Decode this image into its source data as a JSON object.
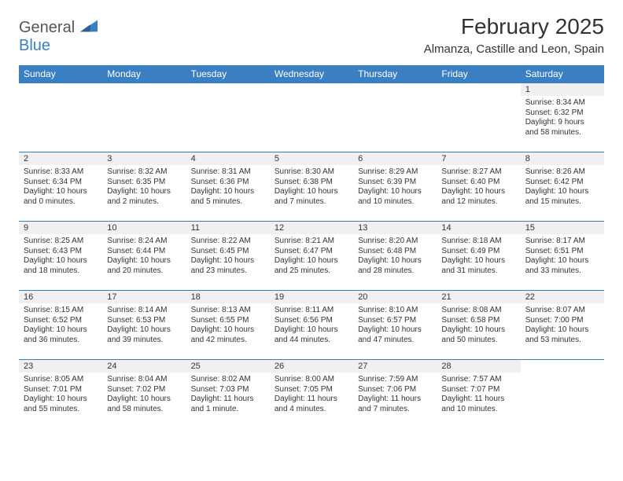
{
  "brand": {
    "part1": "General",
    "part2": "Blue"
  },
  "title": "February 2025",
  "location": "Almanza, Castille and Leon, Spain",
  "header_bg": "#3a7fc2",
  "header_fg": "#ffffff",
  "rule_color": "#3a7fc2",
  "daynum_bg": "#f0f0f0",
  "text_color": "#333333",
  "background": "#ffffff",
  "font_family": "Arial, Helvetica, sans-serif",
  "title_fontsize": 28,
  "location_fontsize": 15,
  "header_fontsize": 12,
  "body_fontsize": 10,
  "day_headers": [
    "Sunday",
    "Monday",
    "Tuesday",
    "Wednesday",
    "Thursday",
    "Friday",
    "Saturday"
  ],
  "weeks": [
    [
      {
        "n": "",
        "sr": "",
        "ss": "",
        "dl": ""
      },
      {
        "n": "",
        "sr": "",
        "ss": "",
        "dl": ""
      },
      {
        "n": "",
        "sr": "",
        "ss": "",
        "dl": ""
      },
      {
        "n": "",
        "sr": "",
        "ss": "",
        "dl": ""
      },
      {
        "n": "",
        "sr": "",
        "ss": "",
        "dl": ""
      },
      {
        "n": "",
        "sr": "",
        "ss": "",
        "dl": ""
      },
      {
        "n": "1",
        "sr": "Sunrise: 8:34 AM",
        "ss": "Sunset: 6:32 PM",
        "dl": "Daylight: 9 hours and 58 minutes."
      }
    ],
    [
      {
        "n": "2",
        "sr": "Sunrise: 8:33 AM",
        "ss": "Sunset: 6:34 PM",
        "dl": "Daylight: 10 hours and 0 minutes."
      },
      {
        "n": "3",
        "sr": "Sunrise: 8:32 AM",
        "ss": "Sunset: 6:35 PM",
        "dl": "Daylight: 10 hours and 2 minutes."
      },
      {
        "n": "4",
        "sr": "Sunrise: 8:31 AM",
        "ss": "Sunset: 6:36 PM",
        "dl": "Daylight: 10 hours and 5 minutes."
      },
      {
        "n": "5",
        "sr": "Sunrise: 8:30 AM",
        "ss": "Sunset: 6:38 PM",
        "dl": "Daylight: 10 hours and 7 minutes."
      },
      {
        "n": "6",
        "sr": "Sunrise: 8:29 AM",
        "ss": "Sunset: 6:39 PM",
        "dl": "Daylight: 10 hours and 10 minutes."
      },
      {
        "n": "7",
        "sr": "Sunrise: 8:27 AM",
        "ss": "Sunset: 6:40 PM",
        "dl": "Daylight: 10 hours and 12 minutes."
      },
      {
        "n": "8",
        "sr": "Sunrise: 8:26 AM",
        "ss": "Sunset: 6:42 PM",
        "dl": "Daylight: 10 hours and 15 minutes."
      }
    ],
    [
      {
        "n": "9",
        "sr": "Sunrise: 8:25 AM",
        "ss": "Sunset: 6:43 PM",
        "dl": "Daylight: 10 hours and 18 minutes."
      },
      {
        "n": "10",
        "sr": "Sunrise: 8:24 AM",
        "ss": "Sunset: 6:44 PM",
        "dl": "Daylight: 10 hours and 20 minutes."
      },
      {
        "n": "11",
        "sr": "Sunrise: 8:22 AM",
        "ss": "Sunset: 6:45 PM",
        "dl": "Daylight: 10 hours and 23 minutes."
      },
      {
        "n": "12",
        "sr": "Sunrise: 8:21 AM",
        "ss": "Sunset: 6:47 PM",
        "dl": "Daylight: 10 hours and 25 minutes."
      },
      {
        "n": "13",
        "sr": "Sunrise: 8:20 AM",
        "ss": "Sunset: 6:48 PM",
        "dl": "Daylight: 10 hours and 28 minutes."
      },
      {
        "n": "14",
        "sr": "Sunrise: 8:18 AM",
        "ss": "Sunset: 6:49 PM",
        "dl": "Daylight: 10 hours and 31 minutes."
      },
      {
        "n": "15",
        "sr": "Sunrise: 8:17 AM",
        "ss": "Sunset: 6:51 PM",
        "dl": "Daylight: 10 hours and 33 minutes."
      }
    ],
    [
      {
        "n": "16",
        "sr": "Sunrise: 8:15 AM",
        "ss": "Sunset: 6:52 PM",
        "dl": "Daylight: 10 hours and 36 minutes."
      },
      {
        "n": "17",
        "sr": "Sunrise: 8:14 AM",
        "ss": "Sunset: 6:53 PM",
        "dl": "Daylight: 10 hours and 39 minutes."
      },
      {
        "n": "18",
        "sr": "Sunrise: 8:13 AM",
        "ss": "Sunset: 6:55 PM",
        "dl": "Daylight: 10 hours and 42 minutes."
      },
      {
        "n": "19",
        "sr": "Sunrise: 8:11 AM",
        "ss": "Sunset: 6:56 PM",
        "dl": "Daylight: 10 hours and 44 minutes."
      },
      {
        "n": "20",
        "sr": "Sunrise: 8:10 AM",
        "ss": "Sunset: 6:57 PM",
        "dl": "Daylight: 10 hours and 47 minutes."
      },
      {
        "n": "21",
        "sr": "Sunrise: 8:08 AM",
        "ss": "Sunset: 6:58 PM",
        "dl": "Daylight: 10 hours and 50 minutes."
      },
      {
        "n": "22",
        "sr": "Sunrise: 8:07 AM",
        "ss": "Sunset: 7:00 PM",
        "dl": "Daylight: 10 hours and 53 minutes."
      }
    ],
    [
      {
        "n": "23",
        "sr": "Sunrise: 8:05 AM",
        "ss": "Sunset: 7:01 PM",
        "dl": "Daylight: 10 hours and 55 minutes."
      },
      {
        "n": "24",
        "sr": "Sunrise: 8:04 AM",
        "ss": "Sunset: 7:02 PM",
        "dl": "Daylight: 10 hours and 58 minutes."
      },
      {
        "n": "25",
        "sr": "Sunrise: 8:02 AM",
        "ss": "Sunset: 7:03 PM",
        "dl": "Daylight: 11 hours and 1 minute."
      },
      {
        "n": "26",
        "sr": "Sunrise: 8:00 AM",
        "ss": "Sunset: 7:05 PM",
        "dl": "Daylight: 11 hours and 4 minutes."
      },
      {
        "n": "27",
        "sr": "Sunrise: 7:59 AM",
        "ss": "Sunset: 7:06 PM",
        "dl": "Daylight: 11 hours and 7 minutes."
      },
      {
        "n": "28",
        "sr": "Sunrise: 7:57 AM",
        "ss": "Sunset: 7:07 PM",
        "dl": "Daylight: 11 hours and 10 minutes."
      },
      {
        "n": "",
        "sr": "",
        "ss": "",
        "dl": ""
      }
    ]
  ]
}
